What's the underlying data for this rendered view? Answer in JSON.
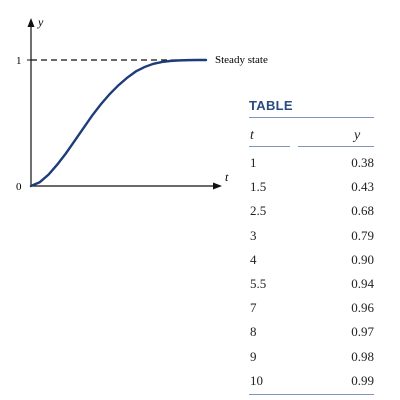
{
  "chart_data": [
    {
      "type": "line",
      "title": "",
      "xlabel": "t",
      "ylabel": "y",
      "yticks": [
        "0",
        "1"
      ],
      "ylim": [
        0,
        1.35
      ],
      "annotations": [
        {
          "text": "Steady state",
          "y": 1
        }
      ],
      "series": [
        {
          "x": [
            0,
            0.05,
            0.1,
            0.15,
            0.2,
            0.25,
            0.3,
            0.35,
            0.4,
            0.45,
            0.5,
            0.55,
            0.6,
            0.65,
            0.7,
            0.75,
            0.8,
            0.85,
            0.9,
            0.95,
            1.0
          ],
          "y": [
            0,
            0.03,
            0.09,
            0.17,
            0.26,
            0.36,
            0.46,
            0.56,
            0.65,
            0.73,
            0.8,
            0.86,
            0.91,
            0.945,
            0.97,
            0.985,
            0.993,
            0.997,
            0.999,
            1.0,
            1.0
          ]
        }
      ],
      "reference_line": {
        "y": 1,
        "style": "dashed"
      },
      "grid": false
    },
    {
      "type": "table",
      "title": "TABLE",
      "columns": [
        "t",
        "y"
      ],
      "rows": [
        [
          "1",
          "0.38"
        ],
        [
          "1.5",
          "0.43"
        ],
        [
          "2.5",
          "0.68"
        ],
        [
          "3",
          "0.79"
        ],
        [
          "4",
          "0.90"
        ],
        [
          "5.5",
          "0.94"
        ],
        [
          "7",
          "0.96"
        ],
        [
          "8",
          "0.97"
        ],
        [
          "9",
          "0.98"
        ],
        [
          "10",
          "0.99"
        ]
      ]
    }
  ],
  "colors": {
    "curve": "#1f3c7a",
    "table_title": "#2b4a80",
    "rules": "#7f95bf"
  }
}
